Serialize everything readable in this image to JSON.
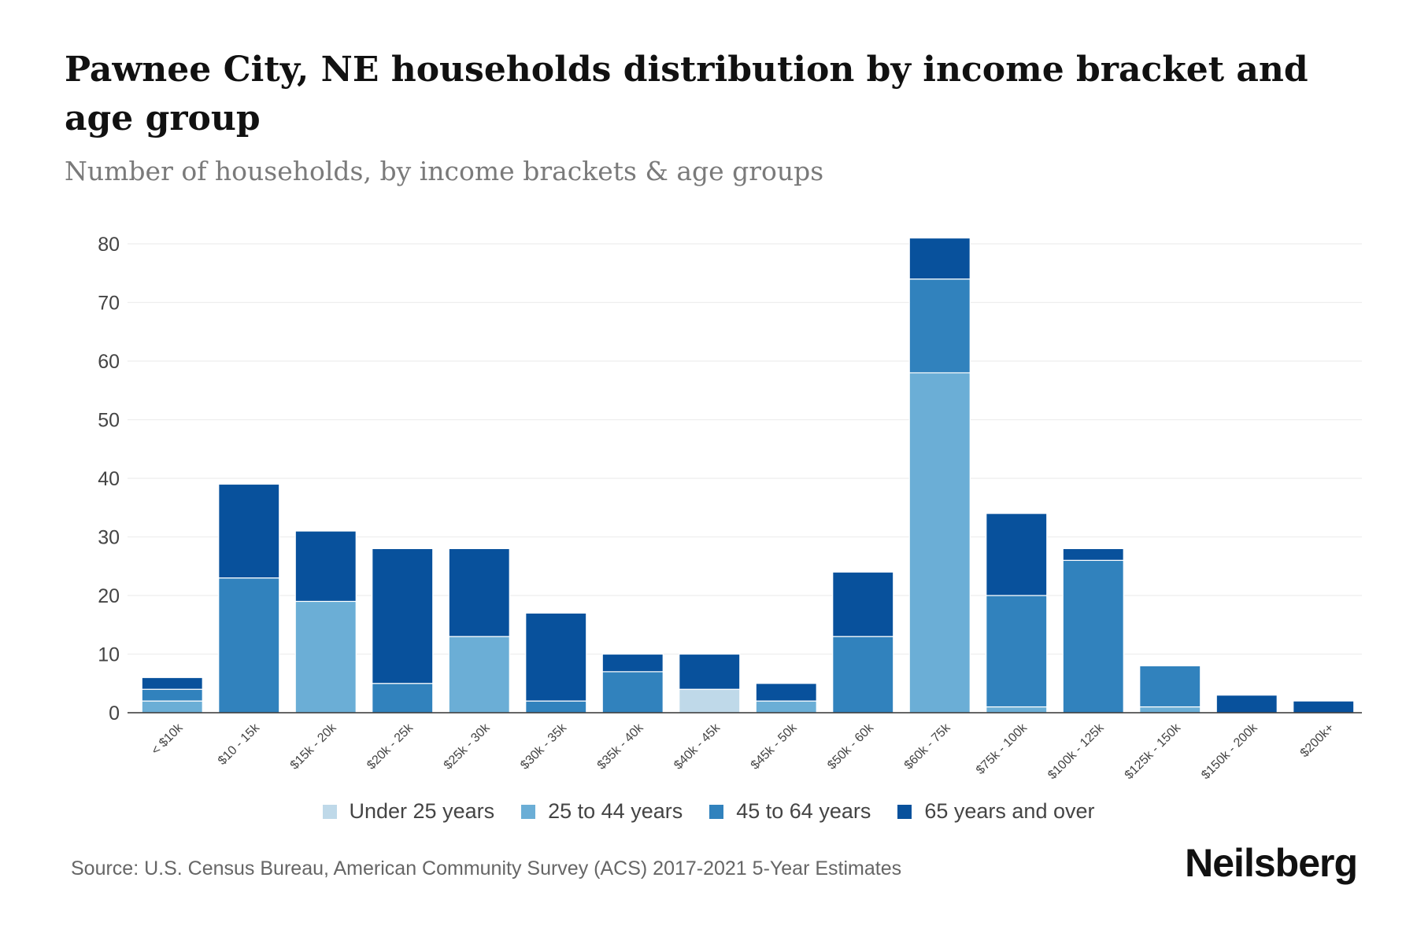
{
  "chart_data": {
    "type": "bar",
    "stacked": true,
    "title": "Pawnee City, NE households distribution by income bracket and age group",
    "subtitle": "Number of households, by income brackets & age groups",
    "xlabel": "",
    "ylabel": "",
    "ylim": [
      0,
      80
    ],
    "yticks": [
      0,
      10,
      20,
      30,
      40,
      50,
      60,
      70,
      80
    ],
    "categories": [
      "< $10k",
      "$10 - 15k",
      "$15k - 20k",
      "$20k - 25k",
      "$25k - 30k",
      "$30k - 35k",
      "$35k - 40k",
      "$40k - 45k",
      "$45k - 50k",
      "$50k - 60k",
      "$60k - 75k",
      "$75k - 100k",
      "$100k - 125k",
      "$125k - 150k",
      "$150k - 200k",
      "$200k+"
    ],
    "series": [
      {
        "name": "Under 25 years",
        "color": "#bfd9e9",
        "values": [
          0,
          0,
          0,
          0,
          0,
          0,
          0,
          4,
          0,
          0,
          0,
          0,
          0,
          0,
          0,
          0
        ]
      },
      {
        "name": "25 to 44 years",
        "color": "#6baed6",
        "values": [
          2,
          0,
          19,
          0,
          13,
          0,
          0,
          0,
          2,
          0,
          58,
          1,
          0,
          1,
          0,
          0
        ]
      },
      {
        "name": "45 to 64 years",
        "color": "#3182bd",
        "values": [
          2,
          23,
          0,
          5,
          0,
          2,
          7,
          0,
          0,
          13,
          16,
          19,
          26,
          7,
          0,
          0
        ]
      },
      {
        "name": "65 years and over",
        "color": "#08519c",
        "values": [
          2,
          16,
          12,
          23,
          15,
          15,
          3,
          6,
          3,
          11,
          7,
          14,
          2,
          0,
          3,
          2
        ]
      }
    ],
    "legend_position": "bottom",
    "grid": true
  },
  "source": "Source: U.S. Census Bureau, American Community Survey (ACS) 2017-2021 5-Year Estimates",
  "brand": "Neilsberg"
}
